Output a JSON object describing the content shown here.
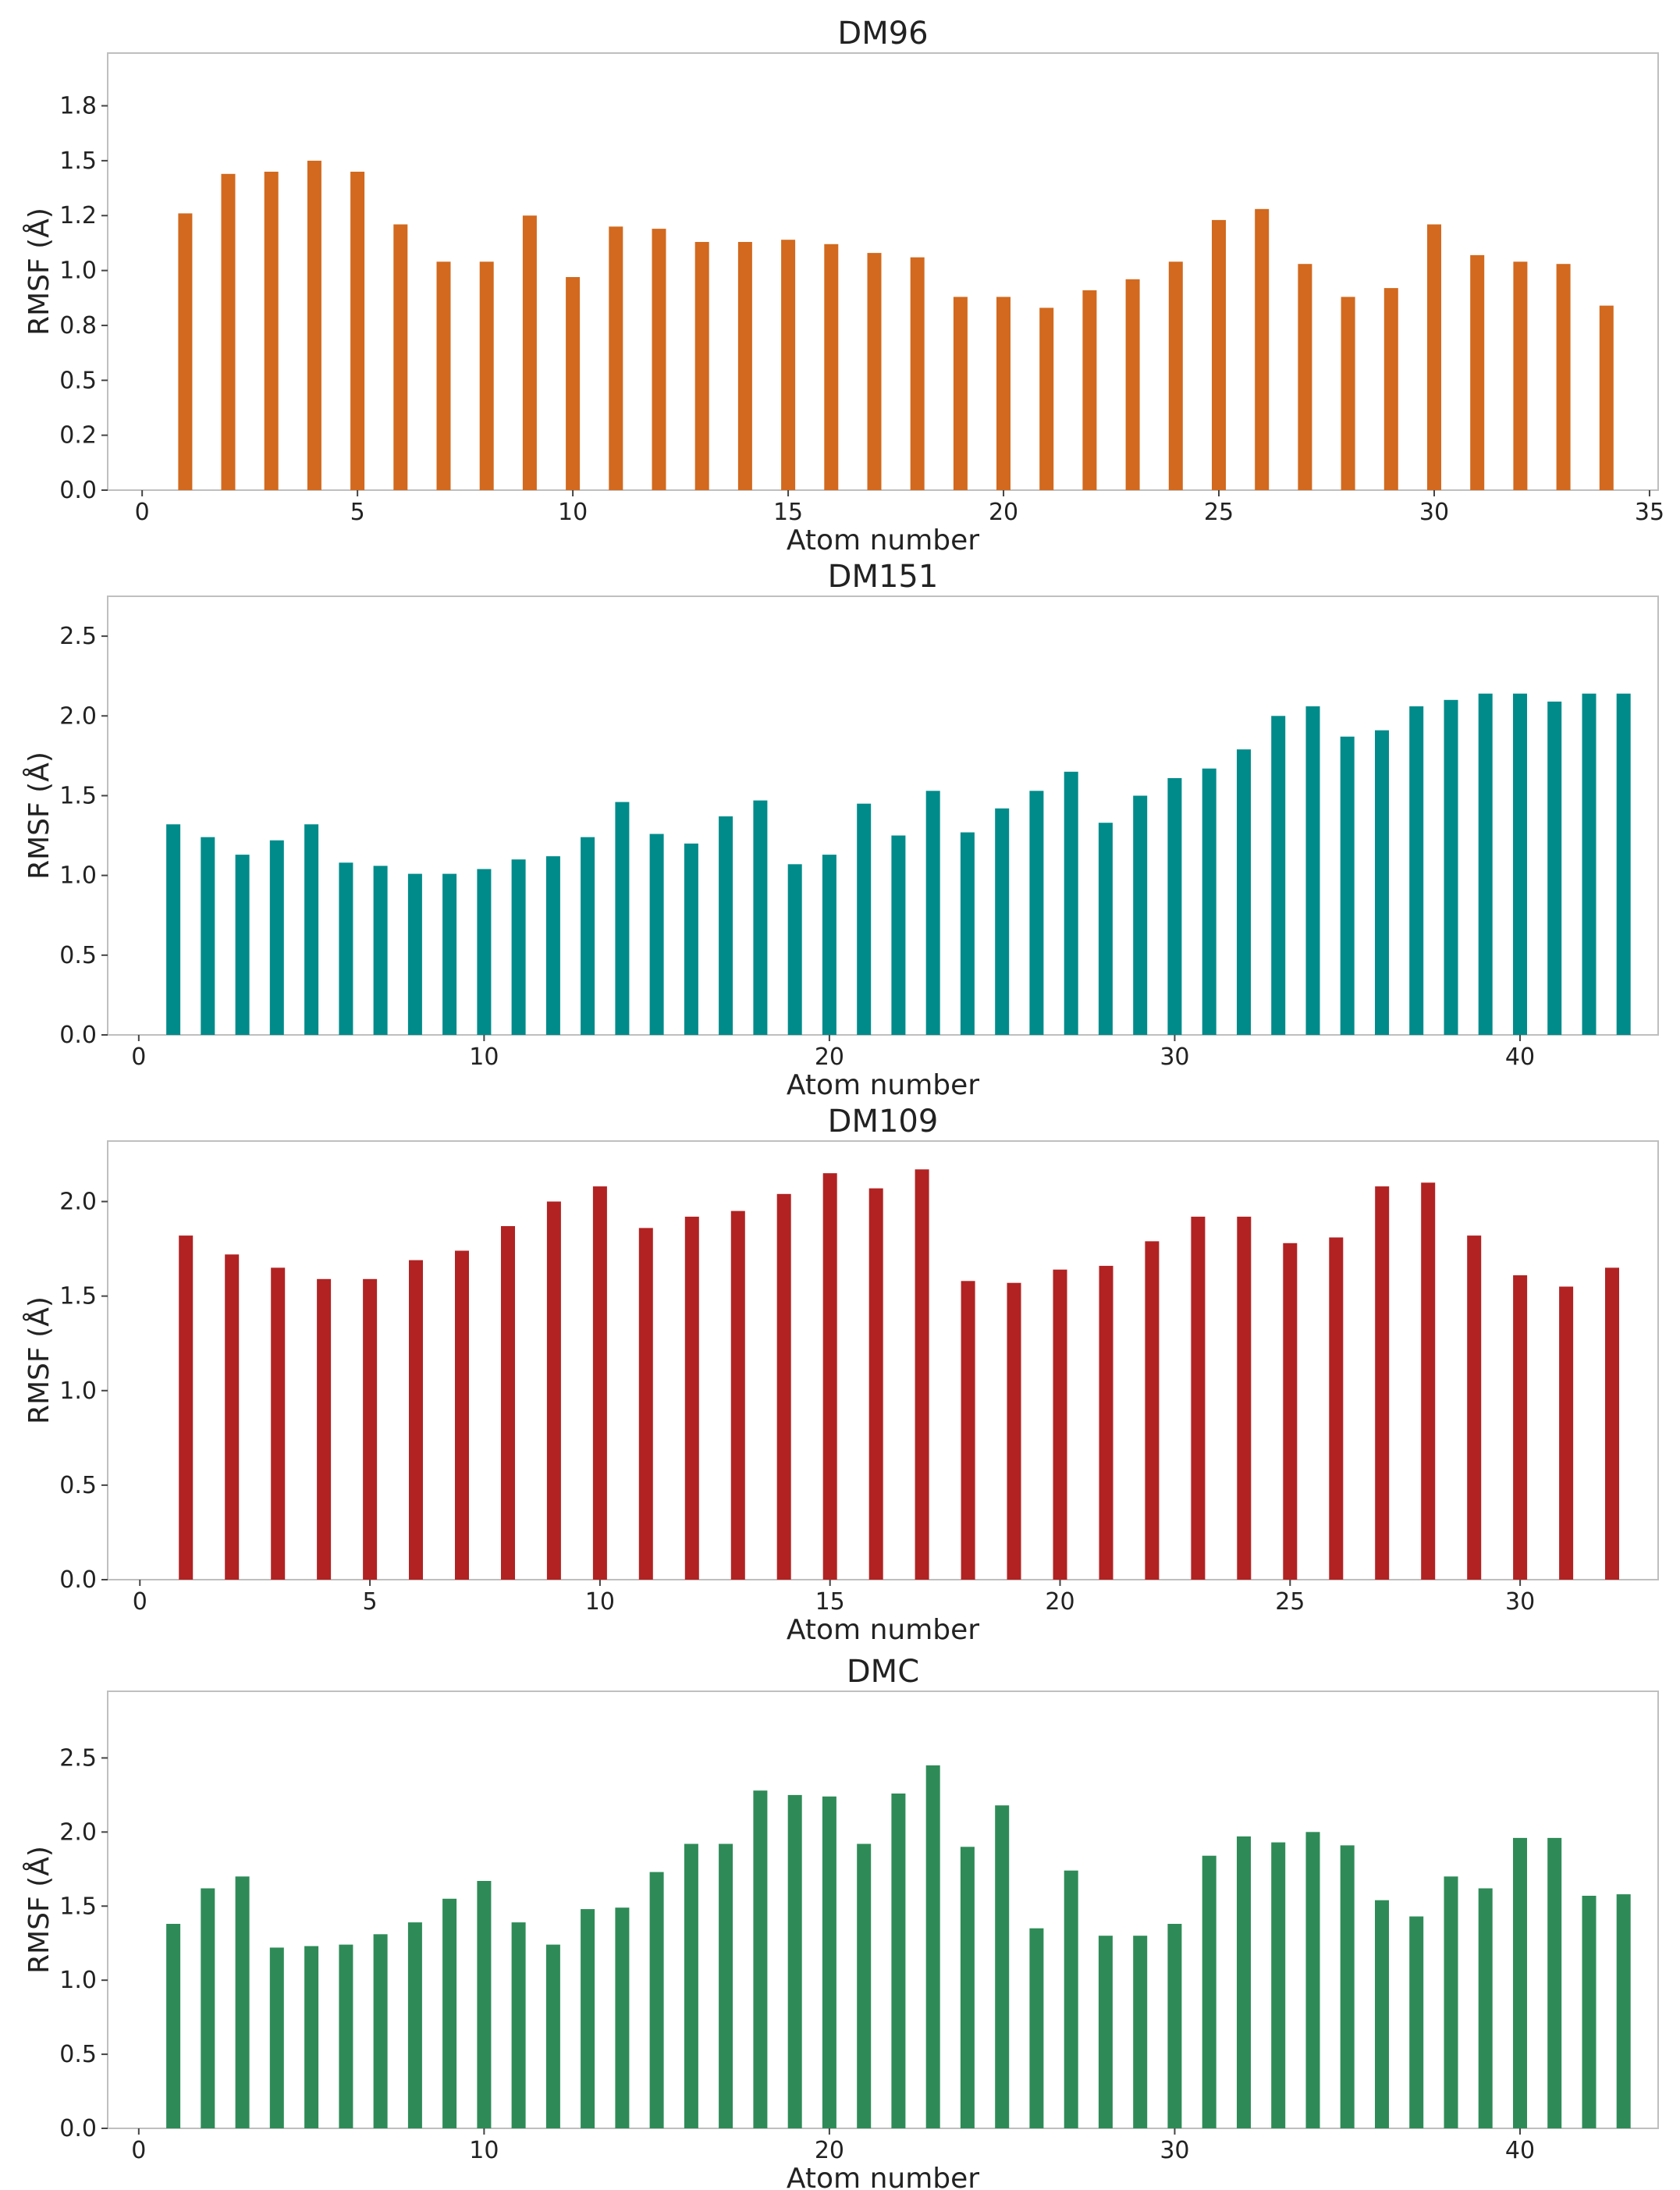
{
  "chart_data": [
    {
      "type": "bar",
      "title": "DM96",
      "xlabel": "Atom number",
      "ylabel": "RMSF (Å)",
      "color": "#d2691e",
      "xlim": [
        -0.8,
        35.2
      ],
      "ylim": [
        0,
        1.99
      ],
      "xticks": [
        0,
        5,
        10,
        15,
        20,
        25,
        30,
        35
      ],
      "yticks": [
        0.0,
        0.25,
        0.5,
        0.75,
        1.0,
        1.25,
        1.5,
        1.75
      ],
      "ytick_labels": [
        "0.0",
        "0.2",
        "0.5",
        "0.8",
        "1.0",
        "1.2",
        "1.5",
        "1.8"
      ],
      "x": [
        1,
        2,
        3,
        4,
        5,
        6,
        7,
        8,
        9,
        10,
        11,
        12,
        13,
        14,
        15,
        16,
        17,
        18,
        19,
        20,
        21,
        22,
        23,
        24,
        25,
        26,
        27,
        28,
        29,
        30,
        31,
        32,
        33,
        34
      ],
      "values": [
        1.26,
        1.44,
        1.45,
        1.5,
        1.45,
        1.21,
        1.04,
        1.04,
        1.25,
        0.97,
        1.2,
        1.19,
        1.13,
        1.13,
        1.14,
        1.12,
        1.08,
        1.06,
        0.88,
        0.88,
        0.83,
        0.91,
        0.96,
        1.04,
        1.23,
        1.28,
        1.03,
        0.88,
        0.92,
        1.21,
        1.07,
        1.04,
        1.03,
        0.84
      ]
    },
    {
      "type": "bar",
      "title": "DM151",
      "xlabel": "Atom number",
      "ylabel": "RMSF (Å)",
      "color": "#008b8b",
      "xlim": [
        -0.9,
        44.0
      ],
      "ylim": [
        0,
        2.75
      ],
      "xticks": [
        0,
        10,
        20,
        30,
        40
      ],
      "yticks": [
        0.0,
        0.5,
        1.0,
        1.5,
        2.0,
        2.5
      ],
      "ytick_labels": [
        "0.0",
        "0.5",
        "1.0",
        "1.5",
        "2.0",
        "2.5"
      ],
      "x": [
        1,
        2,
        3,
        4,
        5,
        6,
        7,
        8,
        9,
        10,
        11,
        12,
        13,
        14,
        15,
        16,
        17,
        18,
        19,
        20,
        21,
        22,
        23,
        24,
        25,
        26,
        27,
        28,
        29,
        30,
        31,
        32,
        33,
        34,
        35,
        36,
        37,
        38,
        39,
        40,
        41,
        42,
        43
      ],
      "values": [
        1.32,
        1.24,
        1.13,
        1.22,
        1.32,
        1.08,
        1.06,
        1.01,
        1.01,
        1.04,
        1.1,
        1.12,
        1.24,
        1.46,
        1.26,
        1.2,
        1.37,
        1.47,
        1.07,
        1.13,
        1.45,
        1.25,
        1.53,
        1.27,
        1.42,
        1.53,
        1.65,
        1.33,
        1.5,
        1.61,
        1.67,
        1.79,
        2.0,
        2.06,
        1.87,
        1.91,
        2.06,
        2.1,
        2.14,
        2.14,
        2.09,
        2.14,
        2.14
      ]
    },
    {
      "type": "bar",
      "title": "DM109",
      "xlabel": "Atom number",
      "ylabel": "RMSF (Å)",
      "color": "#b22222",
      "xlim": [
        -0.7,
        33.0
      ],
      "ylim": [
        0,
        2.32
      ],
      "xticks": [
        0,
        5,
        10,
        15,
        20,
        25,
        30
      ],
      "yticks": [
        0.0,
        0.5,
        1.0,
        1.5,
        2.0
      ],
      "ytick_labels": [
        "0.0",
        "0.5",
        "1.0",
        "1.5",
        "2.0"
      ],
      "x": [
        1,
        2,
        3,
        4,
        5,
        6,
        7,
        8,
        9,
        10,
        11,
        12,
        13,
        14,
        15,
        16,
        17,
        18,
        19,
        20,
        21,
        22,
        23,
        24,
        25,
        26,
        27,
        28,
        29,
        30,
        31,
        32
      ],
      "values": [
        1.82,
        1.72,
        1.65,
        1.59,
        1.59,
        1.69,
        1.74,
        1.87,
        2.0,
        2.08,
        1.86,
        1.92,
        1.95,
        2.04,
        2.15,
        2.07,
        2.17,
        1.58,
        1.57,
        1.64,
        1.66,
        1.79,
        1.92,
        1.92,
        1.78,
        1.81,
        2.08,
        2.1,
        1.82,
        1.61,
        1.55,
        1.65
      ]
    },
    {
      "type": "bar",
      "title": "DMC",
      "xlabel": "Atom number",
      "ylabel": "RMSF (Å)",
      "color": "#2e8b57",
      "xlim": [
        -0.9,
        44.0
      ],
      "ylim": [
        0,
        2.95
      ],
      "xticks": [
        0,
        10,
        20,
        30,
        40
      ],
      "yticks": [
        0.0,
        0.5,
        1.0,
        1.5,
        2.0,
        2.5
      ],
      "ytick_labels": [
        "0.0",
        "0.5",
        "1.0",
        "1.5",
        "2.0",
        "2.5"
      ],
      "x": [
        1,
        2,
        3,
        4,
        5,
        6,
        7,
        8,
        9,
        10,
        11,
        12,
        13,
        14,
        15,
        16,
        17,
        18,
        19,
        20,
        21,
        22,
        23,
        24,
        25,
        26,
        27,
        28,
        29,
        30,
        31,
        32,
        33,
        34,
        35,
        36,
        37,
        38,
        39,
        40,
        41,
        42,
        43
      ],
      "values": [
        1.38,
        1.62,
        1.7,
        1.22,
        1.23,
        1.24,
        1.31,
        1.39,
        1.55,
        1.67,
        1.39,
        1.24,
        1.48,
        1.49,
        1.73,
        1.92,
        1.92,
        2.28,
        2.25,
        2.24,
        1.92,
        2.26,
        2.45,
        1.9,
        2.18,
        1.35,
        1.74,
        1.3,
        1.3,
        1.38,
        1.84,
        1.97,
        1.93,
        2.0,
        1.91,
        1.54,
        1.43,
        1.7,
        1.62,
        1.96,
        1.96,
        1.57,
        1.58
      ]
    }
  ]
}
